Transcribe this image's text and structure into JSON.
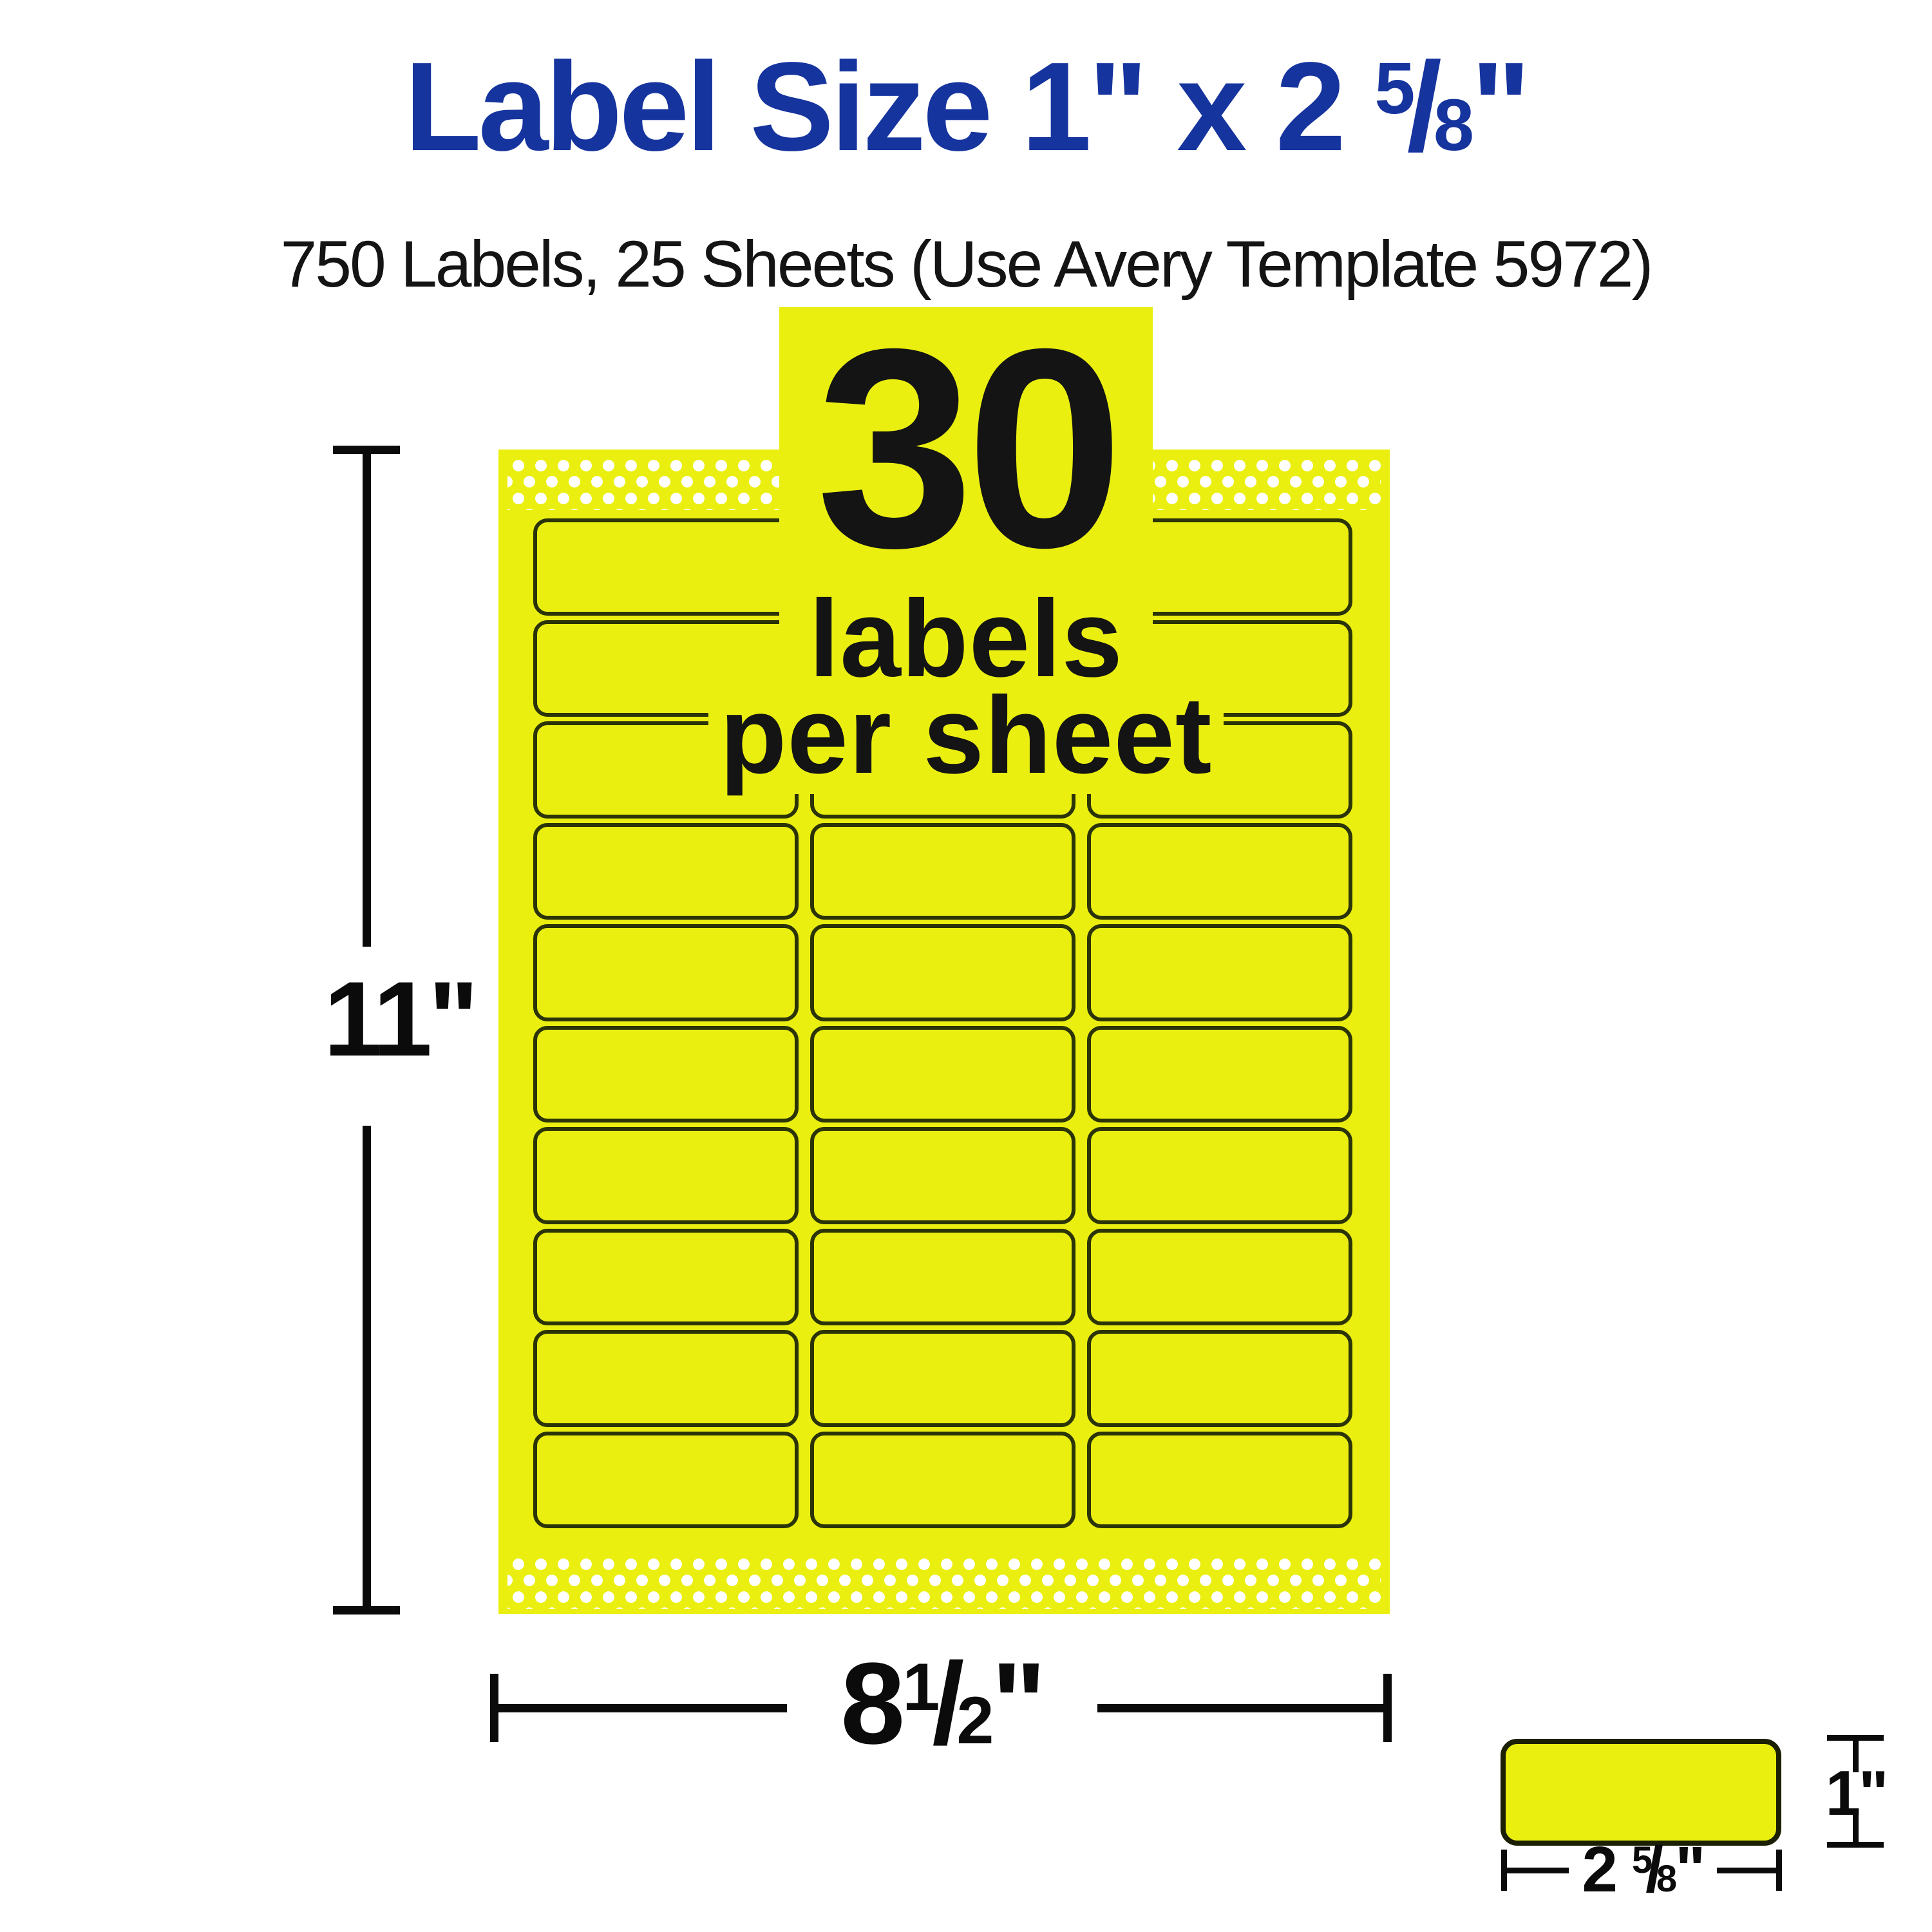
{
  "title": {
    "prefix": "Label Size 1\" x 2 ",
    "fraction": {
      "numerator": "5",
      "denominator": "8"
    },
    "suffix": "\""
  },
  "subtitle": "750 Labels, 25 Sheets (Use Avery Template 5972)",
  "sheet": {
    "callout": {
      "count": "30",
      "caption_line1": "labels",
      "caption_line2": "per sheet"
    },
    "grid": {
      "rows": 10,
      "columns": 3
    }
  },
  "dimensions": {
    "sheet_height_label": "11\"",
    "sheet_width": {
      "whole": "8",
      "fraction": {
        "numerator": "1",
        "denominator": "2"
      },
      "suffix": "\""
    },
    "detail_label_height": "1\"",
    "detail_label_width": {
      "whole": "2 ",
      "fraction": {
        "numerator": "5",
        "denominator": "8"
      },
      "suffix": "\""
    }
  },
  "colors": {
    "brand_blue": "#16349E",
    "sheet_yellow": "#EAEF10",
    "label_border": "#2B3308",
    "ink": "#141414"
  }
}
